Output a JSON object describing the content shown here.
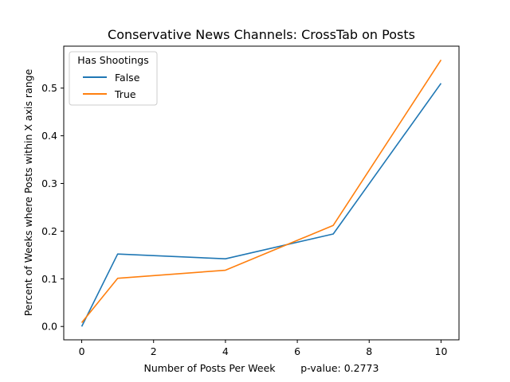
{
  "chart_data": {
    "type": "line",
    "title": "Conservative News Channels: CrossTab on Posts",
    "xlabel": "Number of Posts Per Week        p-value: 0.2773",
    "ylabel": "Percent of Weeks where Posts within X axis range",
    "xlim": [
      -0.5,
      10.5
    ],
    "ylim": [
      -0.028,
      0.588
    ],
    "xticks": [
      0,
      2,
      4,
      6,
      8,
      10
    ],
    "xtick_labels": [
      "0",
      "2",
      "4",
      "6",
      "8",
      "10"
    ],
    "yticks": [
      0.0,
      0.1,
      0.2,
      0.3,
      0.4,
      0.5
    ],
    "ytick_labels": [
      "0.0",
      "0.1",
      "0.2",
      "0.3",
      "0.4",
      "0.5"
    ],
    "grid": false,
    "legend": {
      "title": "Has Shootings",
      "placement": "top-left"
    },
    "series": [
      {
        "name": "False",
        "color": "#1f77b4",
        "x": [
          0,
          1,
          4,
          7,
          10
        ],
        "y": [
          0.0,
          0.152,
          0.142,
          0.194,
          0.51
        ]
      },
      {
        "name": "True",
        "color": "#ff7f0e",
        "x": [
          0,
          1,
          4,
          7,
          10
        ],
        "y": [
          0.008,
          0.101,
          0.118,
          0.212,
          0.559
        ]
      }
    ]
  }
}
